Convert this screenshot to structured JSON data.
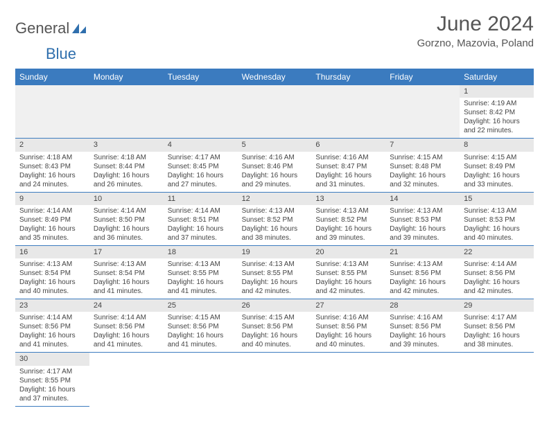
{
  "logo": {
    "text1": "General",
    "text2": "Blue"
  },
  "title": "June 2024",
  "location": "Gorzno, Mazovia, Poland",
  "colors": {
    "header_bg": "#3b7bbf",
    "header_text": "#ffffff",
    "daynum_bg": "#e8e8e8",
    "border": "#3b7bbf",
    "body_text": "#444444",
    "title_text": "#555555"
  },
  "weekdays": [
    "Sunday",
    "Monday",
    "Tuesday",
    "Wednesday",
    "Thursday",
    "Friday",
    "Saturday"
  ],
  "leading_blank": 6,
  "days": [
    {
      "n": "1",
      "sunrise": "Sunrise: 4:19 AM",
      "sunset": "Sunset: 8:42 PM",
      "dl1": "Daylight: 16 hours",
      "dl2": "and 22 minutes."
    },
    {
      "n": "2",
      "sunrise": "Sunrise: 4:18 AM",
      "sunset": "Sunset: 8:43 PM",
      "dl1": "Daylight: 16 hours",
      "dl2": "and 24 minutes."
    },
    {
      "n": "3",
      "sunrise": "Sunrise: 4:18 AM",
      "sunset": "Sunset: 8:44 PM",
      "dl1": "Daylight: 16 hours",
      "dl2": "and 26 minutes."
    },
    {
      "n": "4",
      "sunrise": "Sunrise: 4:17 AM",
      "sunset": "Sunset: 8:45 PM",
      "dl1": "Daylight: 16 hours",
      "dl2": "and 27 minutes."
    },
    {
      "n": "5",
      "sunrise": "Sunrise: 4:16 AM",
      "sunset": "Sunset: 8:46 PM",
      "dl1": "Daylight: 16 hours",
      "dl2": "and 29 minutes."
    },
    {
      "n": "6",
      "sunrise": "Sunrise: 4:16 AM",
      "sunset": "Sunset: 8:47 PM",
      "dl1": "Daylight: 16 hours",
      "dl2": "and 31 minutes."
    },
    {
      "n": "7",
      "sunrise": "Sunrise: 4:15 AM",
      "sunset": "Sunset: 8:48 PM",
      "dl1": "Daylight: 16 hours",
      "dl2": "and 32 minutes."
    },
    {
      "n": "8",
      "sunrise": "Sunrise: 4:15 AM",
      "sunset": "Sunset: 8:49 PM",
      "dl1": "Daylight: 16 hours",
      "dl2": "and 33 minutes."
    },
    {
      "n": "9",
      "sunrise": "Sunrise: 4:14 AM",
      "sunset": "Sunset: 8:49 PM",
      "dl1": "Daylight: 16 hours",
      "dl2": "and 35 minutes."
    },
    {
      "n": "10",
      "sunrise": "Sunrise: 4:14 AM",
      "sunset": "Sunset: 8:50 PM",
      "dl1": "Daylight: 16 hours",
      "dl2": "and 36 minutes."
    },
    {
      "n": "11",
      "sunrise": "Sunrise: 4:14 AM",
      "sunset": "Sunset: 8:51 PM",
      "dl1": "Daylight: 16 hours",
      "dl2": "and 37 minutes."
    },
    {
      "n": "12",
      "sunrise": "Sunrise: 4:13 AM",
      "sunset": "Sunset: 8:52 PM",
      "dl1": "Daylight: 16 hours",
      "dl2": "and 38 minutes."
    },
    {
      "n": "13",
      "sunrise": "Sunrise: 4:13 AM",
      "sunset": "Sunset: 8:52 PM",
      "dl1": "Daylight: 16 hours",
      "dl2": "and 39 minutes."
    },
    {
      "n": "14",
      "sunrise": "Sunrise: 4:13 AM",
      "sunset": "Sunset: 8:53 PM",
      "dl1": "Daylight: 16 hours",
      "dl2": "and 39 minutes."
    },
    {
      "n": "15",
      "sunrise": "Sunrise: 4:13 AM",
      "sunset": "Sunset: 8:53 PM",
      "dl1": "Daylight: 16 hours",
      "dl2": "and 40 minutes."
    },
    {
      "n": "16",
      "sunrise": "Sunrise: 4:13 AM",
      "sunset": "Sunset: 8:54 PM",
      "dl1": "Daylight: 16 hours",
      "dl2": "and 40 minutes."
    },
    {
      "n": "17",
      "sunrise": "Sunrise: 4:13 AM",
      "sunset": "Sunset: 8:54 PM",
      "dl1": "Daylight: 16 hours",
      "dl2": "and 41 minutes."
    },
    {
      "n": "18",
      "sunrise": "Sunrise: 4:13 AM",
      "sunset": "Sunset: 8:55 PM",
      "dl1": "Daylight: 16 hours",
      "dl2": "and 41 minutes."
    },
    {
      "n": "19",
      "sunrise": "Sunrise: 4:13 AM",
      "sunset": "Sunset: 8:55 PM",
      "dl1": "Daylight: 16 hours",
      "dl2": "and 42 minutes."
    },
    {
      "n": "20",
      "sunrise": "Sunrise: 4:13 AM",
      "sunset": "Sunset: 8:55 PM",
      "dl1": "Daylight: 16 hours",
      "dl2": "and 42 minutes."
    },
    {
      "n": "21",
      "sunrise": "Sunrise: 4:13 AM",
      "sunset": "Sunset: 8:56 PM",
      "dl1": "Daylight: 16 hours",
      "dl2": "and 42 minutes."
    },
    {
      "n": "22",
      "sunrise": "Sunrise: 4:14 AM",
      "sunset": "Sunset: 8:56 PM",
      "dl1": "Daylight: 16 hours",
      "dl2": "and 42 minutes."
    },
    {
      "n": "23",
      "sunrise": "Sunrise: 4:14 AM",
      "sunset": "Sunset: 8:56 PM",
      "dl1": "Daylight: 16 hours",
      "dl2": "and 41 minutes."
    },
    {
      "n": "24",
      "sunrise": "Sunrise: 4:14 AM",
      "sunset": "Sunset: 8:56 PM",
      "dl1": "Daylight: 16 hours",
      "dl2": "and 41 minutes."
    },
    {
      "n": "25",
      "sunrise": "Sunrise: 4:15 AM",
      "sunset": "Sunset: 8:56 PM",
      "dl1": "Daylight: 16 hours",
      "dl2": "and 41 minutes."
    },
    {
      "n": "26",
      "sunrise": "Sunrise: 4:15 AM",
      "sunset": "Sunset: 8:56 PM",
      "dl1": "Daylight: 16 hours",
      "dl2": "and 40 minutes."
    },
    {
      "n": "27",
      "sunrise": "Sunrise: 4:16 AM",
      "sunset": "Sunset: 8:56 PM",
      "dl1": "Daylight: 16 hours",
      "dl2": "and 40 minutes."
    },
    {
      "n": "28",
      "sunrise": "Sunrise: 4:16 AM",
      "sunset": "Sunset: 8:56 PM",
      "dl1": "Daylight: 16 hours",
      "dl2": "and 39 minutes."
    },
    {
      "n": "29",
      "sunrise": "Sunrise: 4:17 AM",
      "sunset": "Sunset: 8:56 PM",
      "dl1": "Daylight: 16 hours",
      "dl2": "and 38 minutes."
    },
    {
      "n": "30",
      "sunrise": "Sunrise: 4:17 AM",
      "sunset": "Sunset: 8:55 PM",
      "dl1": "Daylight: 16 hours",
      "dl2": "and 37 minutes."
    }
  ]
}
